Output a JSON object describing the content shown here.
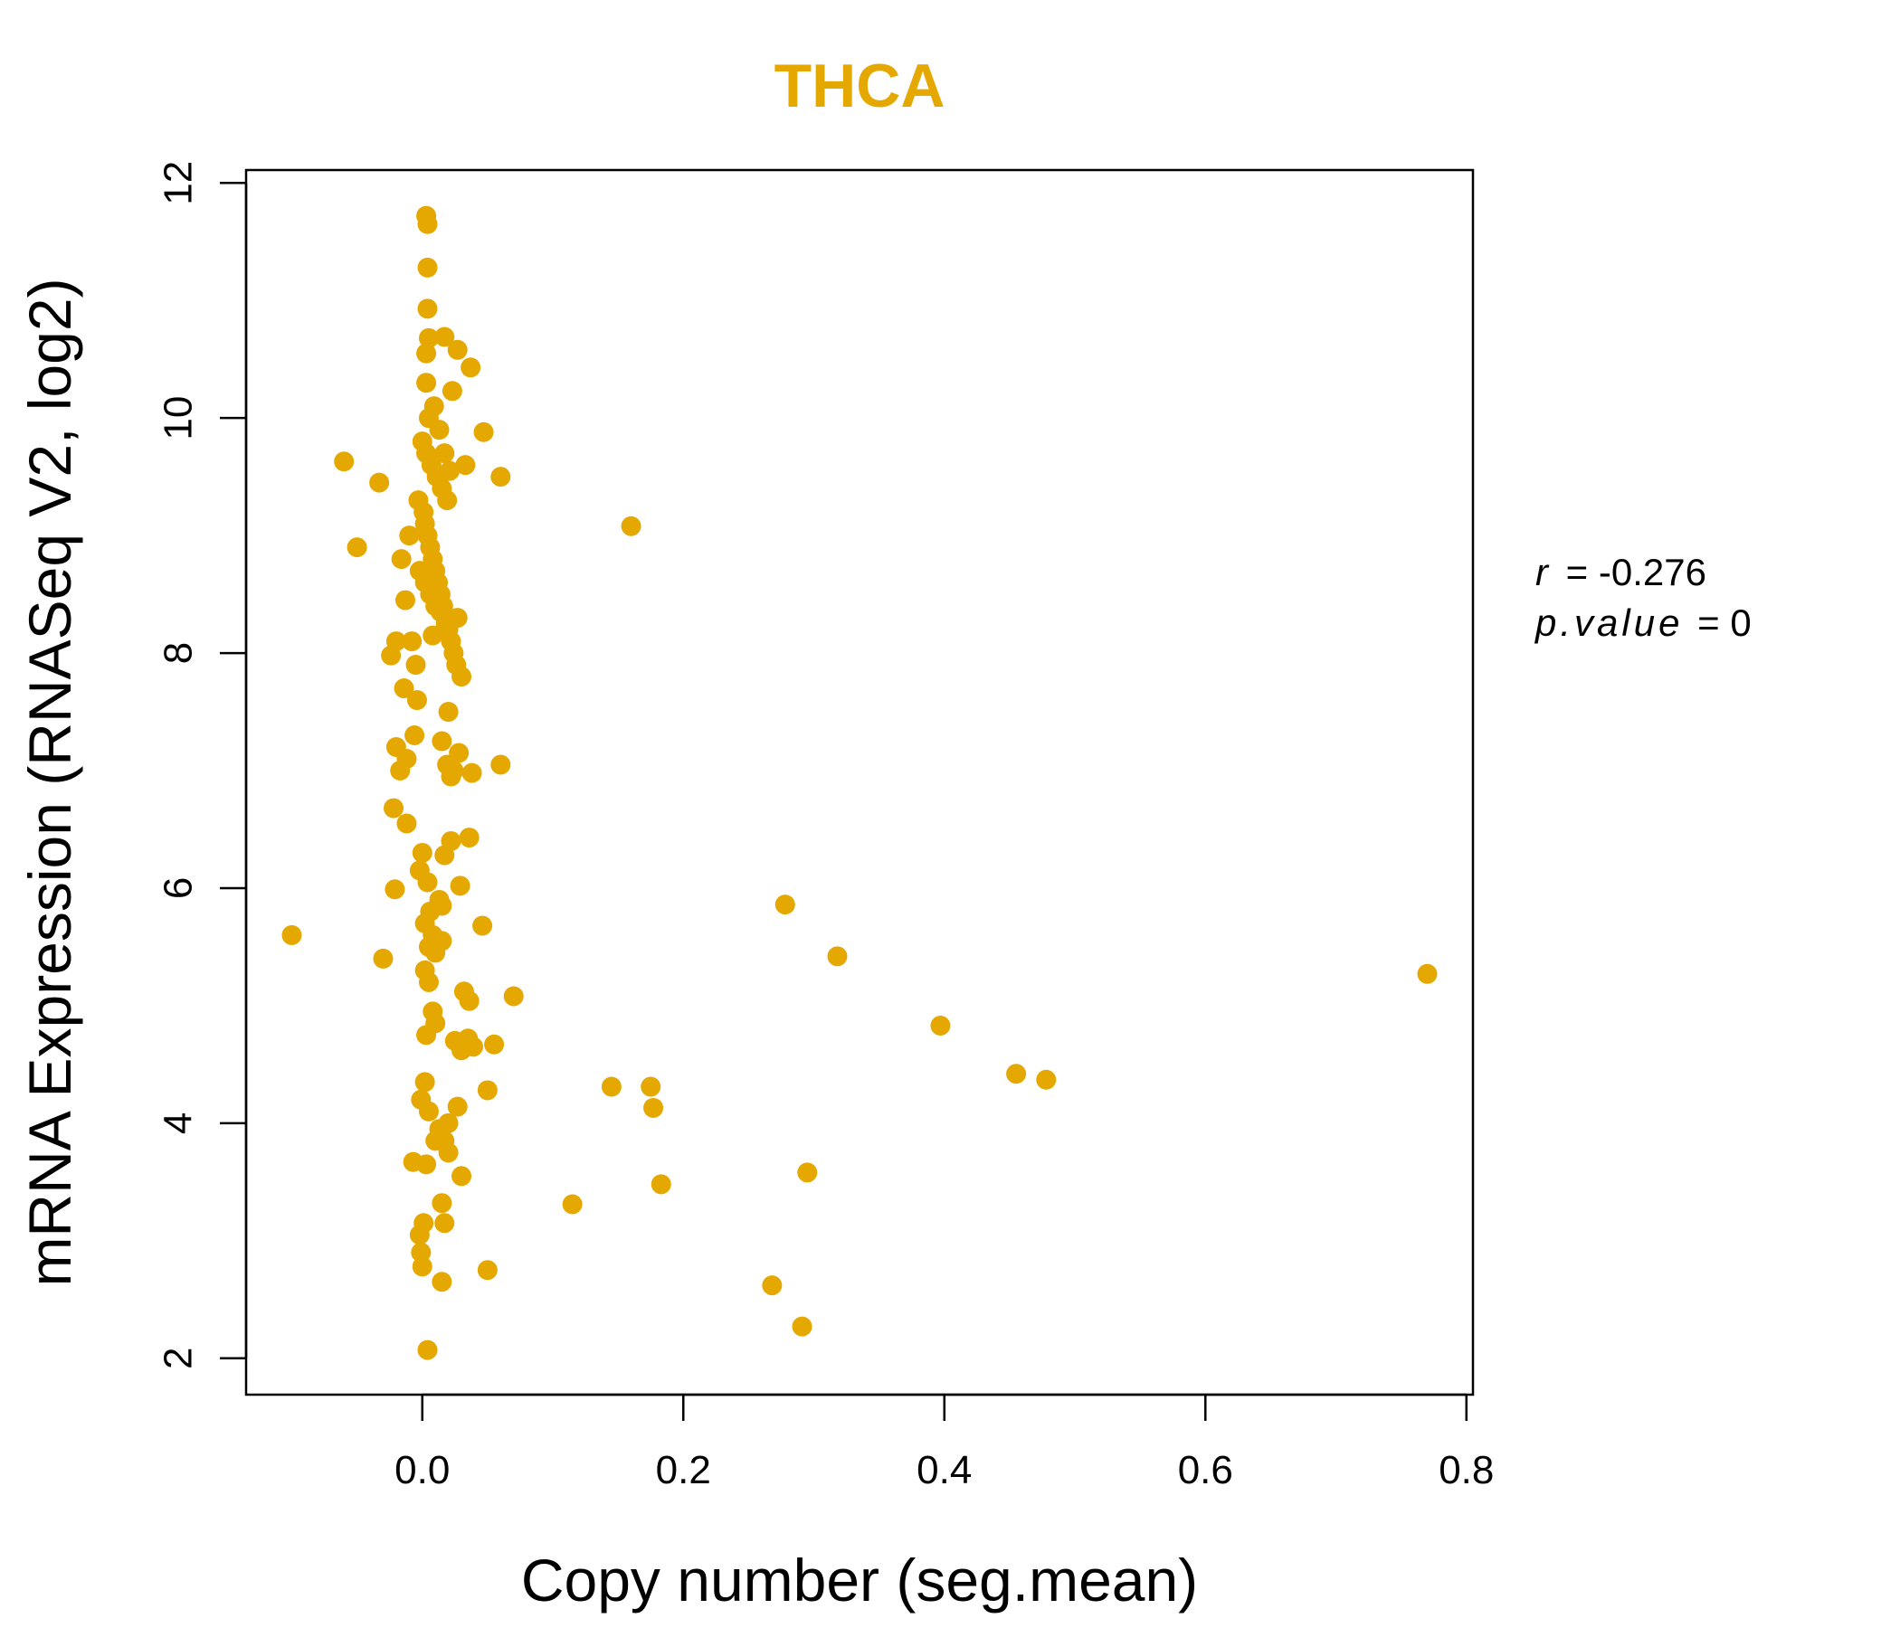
{
  "chart_data": {
    "type": "scatter",
    "title": "THCA",
    "xlabel": "Copy number (seg.mean)",
    "ylabel": "mRNA Expression (RNASeq V2, log2)",
    "xlim": [
      -0.135,
      0.805
    ],
    "ylim": [
      1.69,
      12.11
    ],
    "xticks": [
      0.0,
      0.2,
      0.4,
      0.6,
      0.8
    ],
    "xtick_labels": [
      "0.0",
      "0.2",
      "0.4",
      "0.6",
      "0.8"
    ],
    "yticks": [
      2,
      4,
      6,
      8,
      10,
      12
    ],
    "ytick_labels": [
      "2",
      "4",
      "6",
      "8",
      "10",
      "12"
    ],
    "grid": false,
    "legend": "none",
    "color": "#E5A800",
    "stats": {
      "r_label": "r",
      "r_value": "-0.276",
      "p_label": "p.value",
      "p_value": "0"
    },
    "series": [
      {
        "x": [
          0.003,
          0.004,
          0.004,
          0.004,
          0.005,
          0.003,
          0.017,
          0.027,
          0.037,
          0.023,
          0.003,
          0.047,
          0.033,
          0.06,
          -0.06,
          -0.033,
          -0.05,
          0.16,
          -0.003,
          0.001,
          0.002,
          0.004,
          0.006,
          0.008,
          0.01,
          0.012,
          0.014,
          0.016,
          0.018,
          0.02,
          0.022,
          0.024,
          0.026,
          0.0,
          0.003,
          0.007,
          0.011,
          0.015,
          0.019,
          0.005,
          0.009,
          0.013,
          0.017,
          0.021,
          -0.002,
          0.002,
          0.006,
          0.01,
          0.014,
          0.018,
          0.008,
          -0.01,
          -0.013,
          -0.016,
          -0.008,
          -0.005,
          0.03,
          0.027,
          -0.02,
          -0.017,
          -0.012,
          -0.006,
          0.028,
          0.024,
          0.022,
          0.019,
          0.015,
          -0.024,
          -0.02,
          -0.014,
          -0.004,
          0.02,
          0.038,
          0.06,
          -0.022,
          0.022,
          0.036,
          -0.012,
          0.0,
          -0.002,
          0.004,
          -0.021,
          0.017,
          0.029,
          0.013,
          0.006,
          0.002,
          0.008,
          0.015,
          0.278,
          0.318,
          0.046,
          0.005,
          -0.1,
          -0.03,
          0.002,
          0.005,
          0.01,
          0.015,
          0.032,
          0.036,
          0.07,
          0.008,
          0.01,
          0.003,
          0.025,
          0.03,
          0.035,
          0.039,
          0.055,
          0.397,
          0.145,
          0.175,
          0.455,
          0.478,
          0.177,
          0.05,
          0.02,
          0.027,
          -0.001,
          0.002,
          0.005,
          0.013,
          0.017,
          0.02,
          0.003,
          0.01,
          -0.007,
          0.015,
          0.03,
          0.295,
          0.183,
          0.115,
          0.001,
          0.017,
          -0.002,
          -0.001,
          0.0,
          0.015,
          0.05,
          0.268,
          0.291,
          0.004,
          0.77
        ],
        "y": [
          11.72,
          11.65,
          11.28,
          10.93,
          10.68,
          10.55,
          10.69,
          10.58,
          10.43,
          10.23,
          10.3,
          9.88,
          9.6,
          9.5,
          9.63,
          9.45,
          8.9,
          9.08,
          9.3,
          9.2,
          9.1,
          9.0,
          8.9,
          8.8,
          8.7,
          8.6,
          8.5,
          8.4,
          8.3,
          8.2,
          8.1,
          8.0,
          7.9,
          9.8,
          9.7,
          9.6,
          9.5,
          9.4,
          9.3,
          10.0,
          10.1,
          9.9,
          9.7,
          9.55,
          8.7,
          8.6,
          8.5,
          8.4,
          8.35,
          8.25,
          8.15,
          9.0,
          8.45,
          8.8,
          8.1,
          7.9,
          7.8,
          8.3,
          7.2,
          7.0,
          7.1,
          7.3,
          7.15,
          7.0,
          6.95,
          7.05,
          7.25,
          7.98,
          8.1,
          7.7,
          7.6,
          7.5,
          6.98,
          7.05,
          6.68,
          6.4,
          6.43,
          6.55,
          6.3,
          6.15,
          6.05,
          5.99,
          6.28,
          6.02,
          5.9,
          5.8,
          5.7,
          5.6,
          5.85,
          5.86,
          5.42,
          5.68,
          5.5,
          5.6,
          5.4,
          5.3,
          5.2,
          5.45,
          5.55,
          5.12,
          5.04,
          5.08,
          4.95,
          4.85,
          4.75,
          4.7,
          4.62,
          4.72,
          4.65,
          4.67,
          4.83,
          4.31,
          4.31,
          4.42,
          4.37,
          4.13,
          4.28,
          4.0,
          4.14,
          4.2,
          4.35,
          4.1,
          3.95,
          3.85,
          3.75,
          3.65,
          3.85,
          3.67,
          3.32,
          3.55,
          3.58,
          3.48,
          3.31,
          3.15,
          3.15,
          3.05,
          2.9,
          2.78,
          2.65,
          2.75,
          2.62,
          2.27,
          2.07,
          5.27
        ]
      }
    ]
  }
}
